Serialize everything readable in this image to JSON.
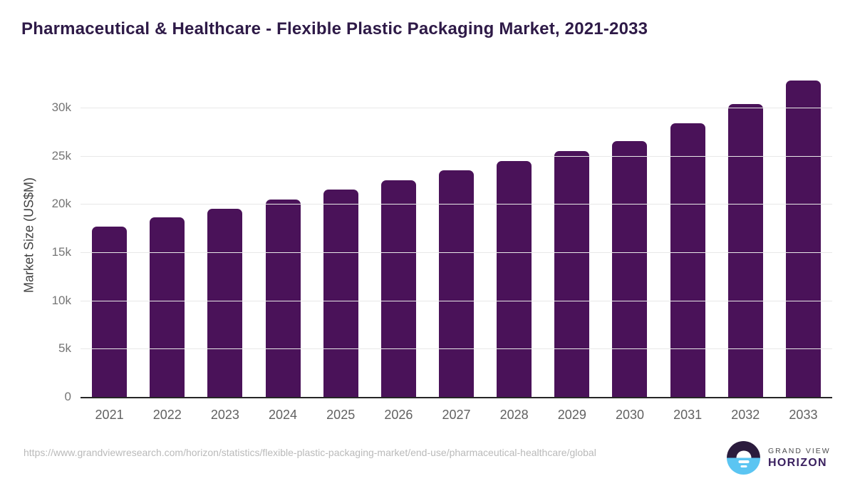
{
  "chart_data": {
    "type": "bar",
    "title": "Pharmaceutical & Healthcare - Flexible Plastic Packaging Market, 2021-2033",
    "categories": [
      "2021",
      "2022",
      "2023",
      "2024",
      "2025",
      "2026",
      "2027",
      "2028",
      "2029",
      "2030",
      "2031",
      "2032",
      "2033"
    ],
    "values": [
      17700,
      18600,
      19500,
      20500,
      21500,
      22500,
      23500,
      24500,
      25500,
      26500,
      28400,
      30400,
      32800
    ],
    "xlabel": "",
    "ylabel": "Market Size (US$M)",
    "ylim": [
      0,
      34000
    ],
    "yticks": [
      {
        "value": 0,
        "label": "0"
      },
      {
        "value": 5000,
        "label": "5k"
      },
      {
        "value": 10000,
        "label": "10k"
      },
      {
        "value": 15000,
        "label": "15k"
      },
      {
        "value": 20000,
        "label": "20k"
      },
      {
        "value": 25000,
        "label": "25k"
      },
      {
        "value": 30000,
        "label": "30k"
      }
    ],
    "grid": true,
    "legend": false
  },
  "colors": {
    "title": "#2E1A47",
    "bar": "#4A1259",
    "axis_line": "#262626",
    "gridline": "#E8E8E8",
    "tick_label": "#757575",
    "x_label": "#616161",
    "url_text": "#BABABA",
    "logo_dark": "#2B1B3D",
    "logo_blue": "#5BC5F2",
    "logo_grandview": "#4D4D4F",
    "logo_horizon": "#3B2160"
  },
  "footer": {
    "source_url": "https://www.grandviewresearch.com/horizon/statistics/flexible-plastic-packaging-market/end-use/pharmaceutical-healthcare/global",
    "logo": {
      "brand_top": "GRAND VIEW",
      "brand_bottom": "HORIZON"
    }
  }
}
